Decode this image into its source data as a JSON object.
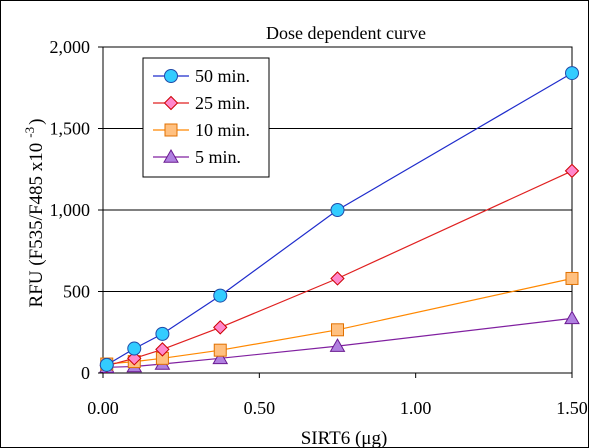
{
  "chart_data": {
    "type": "line",
    "title": "Dose dependent curve",
    "xlabel": "SIRT6  (μg)",
    "ylabel_main": "RFU (F535/F485 x10",
    "ylabel_sup": "-3",
    "ylabel_close": ")",
    "xlim": [
      0,
      1.5
    ],
    "ylim": [
      0,
      2000
    ],
    "x_ticks": [
      0,
      0.5,
      1.0,
      1.5
    ],
    "x_tick_labels": [
      "0.00",
      "0.50",
      "1.00",
      "1.50"
    ],
    "y_ticks": [
      0,
      500,
      1000,
      1500,
      2000
    ],
    "y_tick_labels": [
      "0",
      "500",
      "1,000",
      "1,500",
      "2,000"
    ],
    "grid": "horizontal",
    "legend_position": "top-left",
    "series": [
      {
        "name": "50 min.",
        "marker": "circle",
        "line_color": "#1f2ccc",
        "marker_fill": "#33ccff",
        "marker_stroke": "#1f4aa8",
        "x": [
          0.012,
          0.1,
          0.19,
          0.375,
          0.75,
          1.5
        ],
        "y": [
          50,
          150,
          240,
          475,
          1000,
          1840
        ]
      },
      {
        "name": "25 min.",
        "marker": "diamond",
        "line_color": "#e02020",
        "marker_fill": "#ff88cc",
        "marker_stroke": "#cc0000",
        "x": [
          0.012,
          0.1,
          0.19,
          0.375,
          0.75,
          1.5
        ],
        "y": [
          45,
          90,
          145,
          280,
          580,
          1240
        ]
      },
      {
        "name": "10 min.",
        "marker": "square",
        "line_color": "#ff8800",
        "marker_fill": "#ffc080",
        "marker_stroke": "#e07000",
        "x": [
          0.012,
          0.1,
          0.19,
          0.375,
          0.75,
          1.5
        ],
        "y": [
          55,
          70,
          90,
          140,
          265,
          580
        ]
      },
      {
        "name": "5 min.",
        "marker": "triangle",
        "line_color": "#8020a0",
        "marker_fill": "#b080e0",
        "marker_stroke": "#6a1a90",
        "x": [
          0.012,
          0.1,
          0.19,
          0.375,
          0.75,
          1.5
        ],
        "y": [
          35,
          40,
          55,
          90,
          165,
          335
        ]
      }
    ]
  }
}
